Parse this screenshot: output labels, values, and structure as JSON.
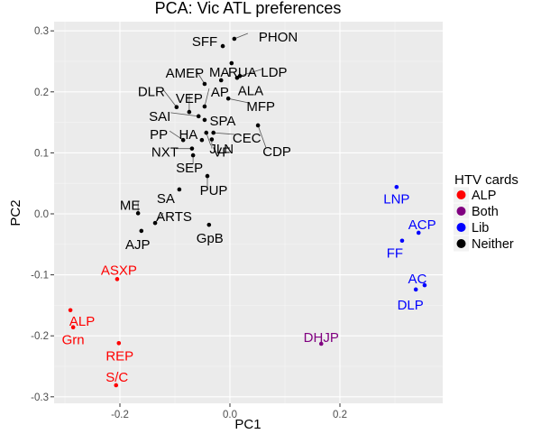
{
  "chart_data": {
    "type": "scatter",
    "title": "PCA: Vic ATL preferences",
    "xlabel": "PC1",
    "ylabel": "PC2",
    "xlim": [
      -0.31,
      0.395
    ],
    "ylim": [
      -0.31,
      0.315
    ],
    "x_ticks": [
      -0.2,
      0.0,
      0.2
    ],
    "x_tick_labels": [
      "-0.2",
      "0.0",
      "0.2"
    ],
    "y_ticks": [
      -0.3,
      -0.2,
      -0.1,
      0.0,
      0.1,
      0.2,
      0.3
    ],
    "y_tick_labels": [
      "-0.3",
      "-0.2",
      "-0.1",
      "0.0",
      "0.1",
      "0.2",
      "0.3"
    ],
    "grid": true,
    "legend": {
      "title": "HTV cards",
      "position": "right",
      "entries": [
        {
          "label": "ALP",
          "color": "#ff0000"
        },
        {
          "label": "Both",
          "color": "#800080"
        },
        {
          "label": "Lib",
          "color": "#0000ff"
        },
        {
          "label": "Neither",
          "color": "#000000"
        }
      ]
    },
    "points": [
      {
        "label": "PHON",
        "x": 0.008,
        "y": 0.287,
        "group": "Neither"
      },
      {
        "label": "SFF",
        "x": -0.013,
        "y": 0.275,
        "group": "Neither"
      },
      {
        "label": "RUA",
        "x": 0.003,
        "y": 0.247,
        "group": "Neither"
      },
      {
        "label": "LDP",
        "x": 0.018,
        "y": 0.226,
        "group": "Neither"
      },
      {
        "label": "ALA",
        "x": 0.013,
        "y": 0.223,
        "group": "Neither"
      },
      {
        "label": "MA",
        "x": -0.016,
        "y": 0.219,
        "group": "Neither"
      },
      {
        "label": "AMEP",
        "x": -0.046,
        "y": 0.213,
        "group": "Neither"
      },
      {
        "label": "MFP",
        "x": -0.003,
        "y": 0.189,
        "group": "Neither"
      },
      {
        "label": "AP",
        "x": -0.046,
        "y": 0.176,
        "group": "Neither"
      },
      {
        "label": "DLR",
        "x": -0.097,
        "y": 0.175,
        "group": "Neither"
      },
      {
        "label": "VEP",
        "x": -0.074,
        "y": 0.167,
        "group": "Neither"
      },
      {
        "label": "SAI",
        "x": -0.057,
        "y": 0.16,
        "group": "Neither"
      },
      {
        "label": "SPA",
        "x": -0.046,
        "y": 0.154,
        "group": "Neither"
      },
      {
        "label": "CEC",
        "x": -0.03,
        "y": 0.133,
        "group": "Neither"
      },
      {
        "label": "CDP",
        "x": 0.051,
        "y": 0.145,
        "group": "Neither"
      },
      {
        "label": "PP",
        "x": -0.085,
        "y": 0.121,
        "group": "Neither"
      },
      {
        "label": "HA",
        "x": -0.051,
        "y": 0.121,
        "group": "Neither"
      },
      {
        "label": "JLN",
        "x": -0.043,
        "y": 0.133,
        "group": "Neither"
      },
      {
        "label": "VF",
        "x": -0.033,
        "y": 0.122,
        "group": "Neither"
      },
      {
        "label": "NXT",
        "x": -0.069,
        "y": 0.107,
        "group": "Neither"
      },
      {
        "label": "SEP",
        "x": -0.067,
        "y": 0.096,
        "group": "Neither"
      },
      {
        "label": "PUP",
        "x": -0.041,
        "y": 0.062,
        "group": "Neither"
      },
      {
        "label": "SA",
        "x": -0.092,
        "y": 0.04,
        "group": "Neither"
      },
      {
        "label": "ME",
        "x": -0.167,
        "y": 0.001,
        "group": "Neither"
      },
      {
        "label": "ARTS",
        "x": -0.136,
        "y": -0.015,
        "group": "Neither"
      },
      {
        "label": "AJP",
        "x": -0.161,
        "y": -0.028,
        "group": "Neither"
      },
      {
        "label": "GpB",
        "x": -0.038,
        "y": -0.018,
        "group": "Neither"
      },
      {
        "label": "ASXP",
        "x": -0.205,
        "y": -0.107,
        "group": "ALP"
      },
      {
        "label": "ALP",
        "x": -0.29,
        "y": -0.158,
        "group": "ALP"
      },
      {
        "label": "Grn",
        "x": -0.285,
        "y": -0.186,
        "group": "ALP"
      },
      {
        "label": "REP",
        "x": -0.202,
        "y": -0.212,
        "group": "ALP"
      },
      {
        "label": "S/C",
        "x": -0.207,
        "y": -0.281,
        "group": "ALP"
      },
      {
        "label": "DHJP",
        "x": 0.166,
        "y": -0.213,
        "group": "Both"
      },
      {
        "label": "LNP",
        "x": 0.303,
        "y": 0.044,
        "group": "Lib"
      },
      {
        "label": "ACP",
        "x": 0.343,
        "y": -0.031,
        "group": "Lib"
      },
      {
        "label": "FF",
        "x": 0.313,
        "y": -0.044,
        "group": "Lib"
      },
      {
        "label": "AC",
        "x": 0.354,
        "y": -0.117,
        "group": "Lib"
      },
      {
        "label": "DLP",
        "x": 0.338,
        "y": -0.124,
        "group": "Lib"
      }
    ]
  }
}
